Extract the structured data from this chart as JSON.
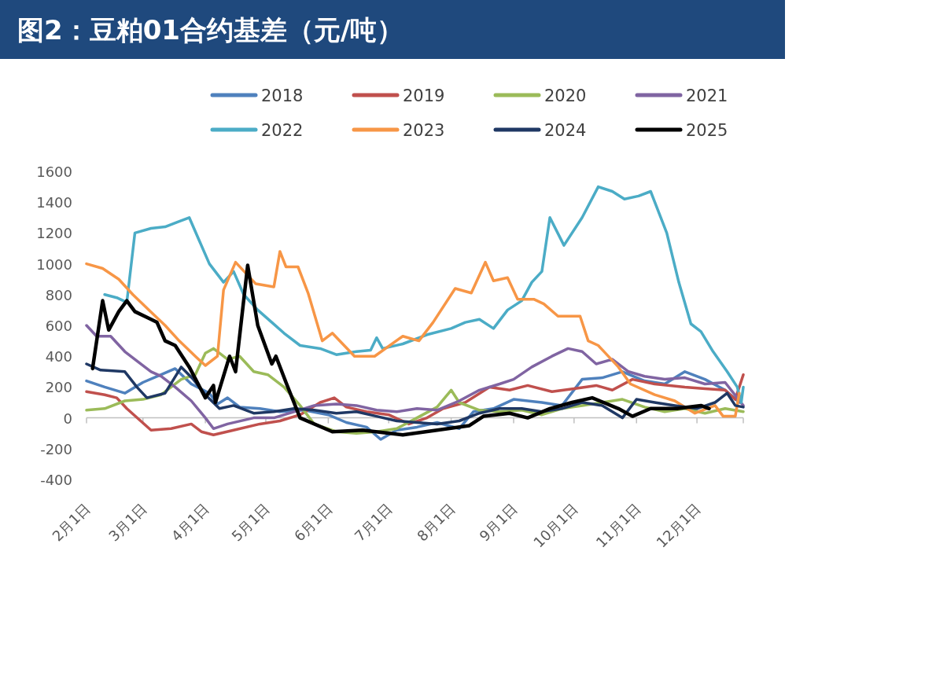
{
  "chart_data": {
    "type": "line",
    "title": "图2：豆粕01合约基差（元/吨）",
    "legend": "top",
    "marker": "none",
    "line_style": "solid",
    "xlim": [
      "--02-01",
      "--12-24"
    ],
    "xticks": [
      {
        "value": "--02-01",
        "label": "2月1日"
      },
      {
        "value": "--03-01",
        "label": "3月1日"
      },
      {
        "value": "--04-01",
        "label": "4月1日"
      },
      {
        "value": "--05-01",
        "label": "5月1日"
      },
      {
        "value": "--06-01",
        "label": "6月1日"
      },
      {
        "value": "--07-01",
        "label": "7月1日"
      },
      {
        "value": "--08-01",
        "label": "8月1日"
      },
      {
        "value": "--09-01",
        "label": "9月1日"
      },
      {
        "value": "--10-01",
        "label": "10月1日"
      },
      {
        "value": "--11-01",
        "label": "11月1日"
      },
      {
        "value": "--12-01",
        "label": "12月1日"
      }
    ],
    "ylim": [
      -400,
      1600
    ],
    "yticks": [
      -400,
      -200,
      0,
      200,
      400,
      600,
      800,
      1000,
      1200,
      1400,
      1600
    ],
    "series": [
      {
        "name": "2018",
        "color": "#4f81bd",
        "x": [
          "--02-01",
          "--02-10",
          "--02-20",
          "--03-01",
          "--03-10",
          "--03-17",
          "--03-25",
          "--04-03",
          "--04-07",
          "--04-12",
          "--04-18",
          "--04-28",
          "--05-08",
          "--05-20",
          "--06-01",
          "--06-10",
          "--06-20",
          "--06-27",
          "--07-05",
          "--07-15",
          "--07-25",
          "--08-05",
          "--08-12",
          "--08-22",
          "--09-01",
          "--09-15",
          "--09-25",
          "--10-05",
          "--10-15",
          "--10-25",
          "--11-05",
          "--11-15",
          "--11-25",
          "--12-05",
          "--12-15",
          "--12-22"
        ],
        "values": [
          240,
          200,
          160,
          230,
          280,
          320,
          220,
          160,
          90,
          130,
          70,
          60,
          40,
          50,
          20,
          -30,
          -60,
          -140,
          -80,
          -60,
          -30,
          -70,
          40,
          60,
          120,
          100,
          80,
          250,
          260,
          300,
          240,
          220,
          300,
          250,
          180,
          100
        ]
      },
      {
        "name": "2019",
        "color": "#c0504d",
        "x": [
          "--02-01",
          "--02-10",
          "--02-16",
          "--02-21",
          "--03-05",
          "--03-15",
          "--03-25",
          "--03-30",
          "--04-05",
          "--04-15",
          "--04-28",
          "--05-08",
          "--05-18",
          "--05-28",
          "--06-04",
          "--06-10",
          "--06-20",
          "--07-01",
          "--07-11",
          "--07-20",
          "--07-28",
          "--08-08",
          "--08-20",
          "--08-30",
          "--09-08",
          "--09-20",
          "--10-01",
          "--10-12",
          "--10-20",
          "--10-30",
          "--11-10",
          "--11-25",
          "--12-05",
          "--12-15",
          "--12-20",
          "--12-24"
        ],
        "values": [
          170,
          150,
          130,
          60,
          -80,
          -70,
          -40,
          -90,
          -110,
          -80,
          -40,
          -20,
          20,
          100,
          130,
          70,
          40,
          20,
          -40,
          0,
          60,
          100,
          200,
          180,
          210,
          170,
          190,
          210,
          180,
          250,
          220,
          200,
          190,
          180,
          120,
          280
        ]
      },
      {
        "name": "2020",
        "color": "#9bbb59",
        "x": [
          "--02-01",
          "--02-10",
          "--02-20",
          "--03-01",
          "--03-10",
          "--03-20",
          "--03-27",
          "--04-01",
          "--04-05",
          "--04-12",
          "--04-18",
          "--04-25",
          "--05-02",
          "--05-10",
          "--05-18",
          "--05-25",
          "--06-05",
          "--06-15",
          "--06-25",
          "--07-05",
          "--07-15",
          "--07-25",
          "--08-01",
          "--08-05",
          "--08-15",
          "--08-25",
          "--09-05",
          "--09-15",
          "--09-25",
          "--10-05",
          "--10-15",
          "--10-25",
          "--11-05",
          "--11-15",
          "--11-25",
          "--12-05",
          "--12-15",
          "--12-24"
        ],
        "values": [
          50,
          60,
          110,
          120,
          150,
          250,
          280,
          420,
          450,
          380,
          400,
          300,
          280,
          200,
          80,
          -40,
          -90,
          -100,
          -90,
          -70,
          0,
          70,
          180,
          100,
          50,
          40,
          50,
          20,
          60,
          80,
          100,
          120,
          70,
          40,
          60,
          30,
          60,
          40
        ]
      },
      {
        "name": "2021",
        "color": "#8064a2",
        "x": [
          "--02-01",
          "--02-06",
          "--02-13",
          "--02-20",
          "--02-26",
          "--03-05",
          "--03-10",
          "--03-17",
          "--03-25",
          "--04-01",
          "--04-05",
          "--04-12",
          "--04-25",
          "--05-05",
          "--05-15",
          "--05-25",
          "--06-05",
          "--06-15",
          "--06-25",
          "--07-05",
          "--07-15",
          "--07-25",
          "--08-05",
          "--08-15",
          "--08-25",
          "--09-01",
          "--09-10",
          "--09-20",
          "--09-28",
          "--10-05",
          "--10-12",
          "--10-20",
          "--10-28",
          "--11-05",
          "--11-15",
          "--11-25",
          "--12-05",
          "--12-15",
          "--12-24"
        ],
        "values": [
          600,
          530,
          530,
          430,
          370,
          300,
          270,
          200,
          110,
          0,
          -70,
          -40,
          0,
          0,
          40,
          80,
          90,
          80,
          50,
          40,
          60,
          50,
          110,
          180,
          220,
          250,
          330,
          400,
          450,
          430,
          350,
          380,
          300,
          270,
          250,
          260,
          220,
          230,
          80
        ]
      },
      {
        "name": "2022",
        "color": "#4bacc6",
        "x": [
          "--02-10",
          "--02-16",
          "--02-21",
          "--02-25",
          "--03-05",
          "--03-12",
          "--03-18",
          "--03-24",
          "--03-29",
          "--04-03",
          "--04-10",
          "--04-15",
          "--04-20",
          "--04-27",
          "--05-04",
          "--05-10",
          "--05-18",
          "--05-28",
          "--06-05",
          "--06-15",
          "--06-22",
          "--06-25",
          "--06-28",
          "--07-08",
          "--07-20",
          "--08-01",
          "--08-08",
          "--08-15",
          "--08-22",
          "--08-29",
          "--09-05",
          "--09-10",
          "--09-15",
          "--09-19",
          "--09-26",
          "--10-05",
          "--10-13",
          "--10-20",
          "--10-26",
          "--11-02",
          "--11-08",
          "--11-16",
          "--11-22",
          "--11-28",
          "--12-03",
          "--12-09",
          "--12-16",
          "--12-21",
          "--12-23",
          "--12-24"
        ],
        "values": [
          800,
          780,
          750,
          1200,
          1230,
          1240,
          1270,
          1300,
          1150,
          1000,
          880,
          950,
          800,
          700,
          620,
          550,
          470,
          450,
          410,
          430,
          440,
          520,
          450,
          480,
          540,
          580,
          620,
          640,
          580,
          700,
          760,
          880,
          950,
          1300,
          1120,
          1300,
          1500,
          1470,
          1420,
          1440,
          1470,
          1200,
          880,
          610,
          560,
          430,
          300,
          200,
          100,
          200
        ]
      },
      {
        "name": "2023",
        "color": "#f79646",
        "x": [
          "--02-01",
          "--02-09",
          "--02-17",
          "--02-24",
          "--03-04",
          "--03-12",
          "--03-19",
          "--03-27",
          "--04-01",
          "--04-07",
          "--04-10",
          "--04-16",
          "--04-26",
          "--05-05",
          "--05-08",
          "--05-11",
          "--05-17",
          "--05-22",
          "--05-29",
          "--06-03",
          "--06-14",
          "--06-24",
          "--07-08",
          "--07-16",
          "--07-23",
          "--08-03",
          "--08-11",
          "--08-18",
          "--08-22",
          "--08-29",
          "--09-03",
          "--09-11",
          "--09-16",
          "--09-23",
          "--10-04",
          "--10-08",
          "--10-13",
          "--10-23",
          "--10-29",
          "--11-10",
          "--11-20",
          "--11-30",
          "--12-10",
          "--12-14",
          "--12-20",
          "--12-22"
        ],
        "values": [
          1000,
          970,
          900,
          800,
          700,
          600,
          500,
          400,
          340,
          400,
          830,
          1010,
          870,
          850,
          1080,
          980,
          980,
          810,
          500,
          550,
          400,
          400,
          530,
          500,
          620,
          840,
          810,
          1010,
          890,
          910,
          770,
          770,
          740,
          660,
          660,
          500,
          470,
          330,
          220,
          150,
          110,
          30,
          80,
          10,
          10,
          160
        ]
      },
      {
        "name": "2024",
        "color": "#1f3864",
        "x": [
          "--02-01",
          "--02-08",
          "--02-20",
          "--02-26",
          "--03-03",
          "--03-12",
          "--03-20",
          "--03-26",
          "--04-01",
          "--04-08",
          "--04-15",
          "--04-25",
          "--05-05",
          "--05-15",
          "--05-25",
          "--06-05",
          "--06-15",
          "--06-25",
          "--07-05",
          "--07-15",
          "--07-25",
          "--08-05",
          "--08-15",
          "--08-25",
          "--09-05",
          "--09-15",
          "--09-25",
          "--10-05",
          "--10-15",
          "--10-25",
          "--11-01",
          "--11-10",
          "--11-20",
          "--12-01",
          "--12-10",
          "--12-16",
          "--12-20",
          "--12-24"
        ],
        "values": [
          350,
          310,
          300,
          200,
          130,
          160,
          330,
          250,
          150,
          60,
          80,
          30,
          40,
          60,
          50,
          30,
          40,
          10,
          -20,
          -30,
          -40,
          -20,
          30,
          60,
          60,
          40,
          60,
          100,
          80,
          0,
          120,
          100,
          80,
          60,
          100,
          160,
          80,
          70
        ]
      },
      {
        "name": "2025",
        "color": "#000000",
        "x": [
          "--02-04",
          "--02-09",
          "--02-12",
          "--02-17",
          "--02-21",
          "--02-25",
          "--03-05",
          "--03-08",
          "--03-12",
          "--03-17",
          "--03-24",
          "--04-01",
          "--04-05",
          "--04-06",
          "--04-13",
          "--04-16",
          "--04-22",
          "--04-27",
          "--05-04",
          "--05-06",
          "--05-11",
          "--05-18",
          "--06-03",
          "--06-18",
          "--07-08",
          "--07-25",
          "--08-10",
          "--08-17",
          "--08-30",
          "--09-08",
          "--09-19",
          "--09-30",
          "--10-10",
          "--10-23",
          "--10-30",
          "--11-08",
          "--11-21",
          "--12-03",
          "--12-07"
        ],
        "values": [
          320,
          760,
          570,
          690,
          760,
          690,
          640,
          620,
          500,
          470,
          330,
          130,
          210,
          100,
          400,
          300,
          990,
          600,
          350,
          400,
          230,
          0,
          -90,
          -80,
          -110,
          -80,
          -50,
          10,
          30,
          0,
          60,
          100,
          130,
          60,
          10,
          60,
          60,
          80,
          60
        ]
      }
    ]
  }
}
